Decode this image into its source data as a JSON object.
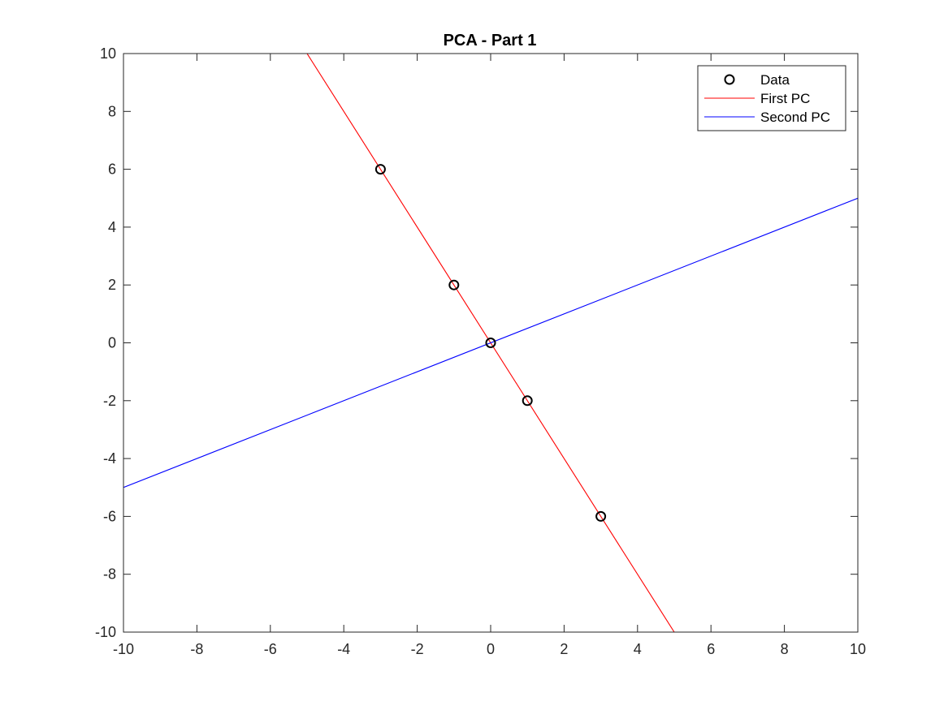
{
  "chart_data": {
    "type": "scatter",
    "title": "PCA - Part 1",
    "xlabel": "",
    "ylabel": "",
    "xlim": [
      -10,
      10
    ],
    "ylim": [
      -10,
      10
    ],
    "x_ticks": [
      -10,
      -8,
      -6,
      -4,
      -2,
      0,
      2,
      4,
      6,
      8,
      10
    ],
    "y_ticks": [
      -10,
      -8,
      -6,
      -4,
      -2,
      0,
      2,
      4,
      6,
      8,
      10
    ],
    "x_tick_labels": [
      "-10",
      "-8",
      "-6",
      "-4",
      "-2",
      "0",
      "2",
      "4",
      "6",
      "8",
      "10"
    ],
    "y_tick_labels": [
      "-10",
      "-8",
      "-6",
      "-4",
      "-2",
      "0",
      "2",
      "4",
      "6",
      "8",
      "10"
    ],
    "grid": false,
    "legend_position": "top-right",
    "series": [
      {
        "name": "Data",
        "kind": "scatter",
        "marker": "circle",
        "color": "#000000",
        "points": [
          [
            -3,
            6
          ],
          [
            -1,
            2
          ],
          [
            0,
            0
          ],
          [
            1,
            -2
          ],
          [
            3,
            -6
          ]
        ]
      },
      {
        "name": "First PC",
        "kind": "line",
        "color": "#ff0000",
        "points": [
          [
            -5,
            10
          ],
          [
            5,
            -10
          ]
        ]
      },
      {
        "name": "Second PC",
        "kind": "line",
        "color": "#0000ff",
        "points": [
          [
            -10,
            -5
          ],
          [
            10,
            5
          ]
        ]
      }
    ]
  }
}
